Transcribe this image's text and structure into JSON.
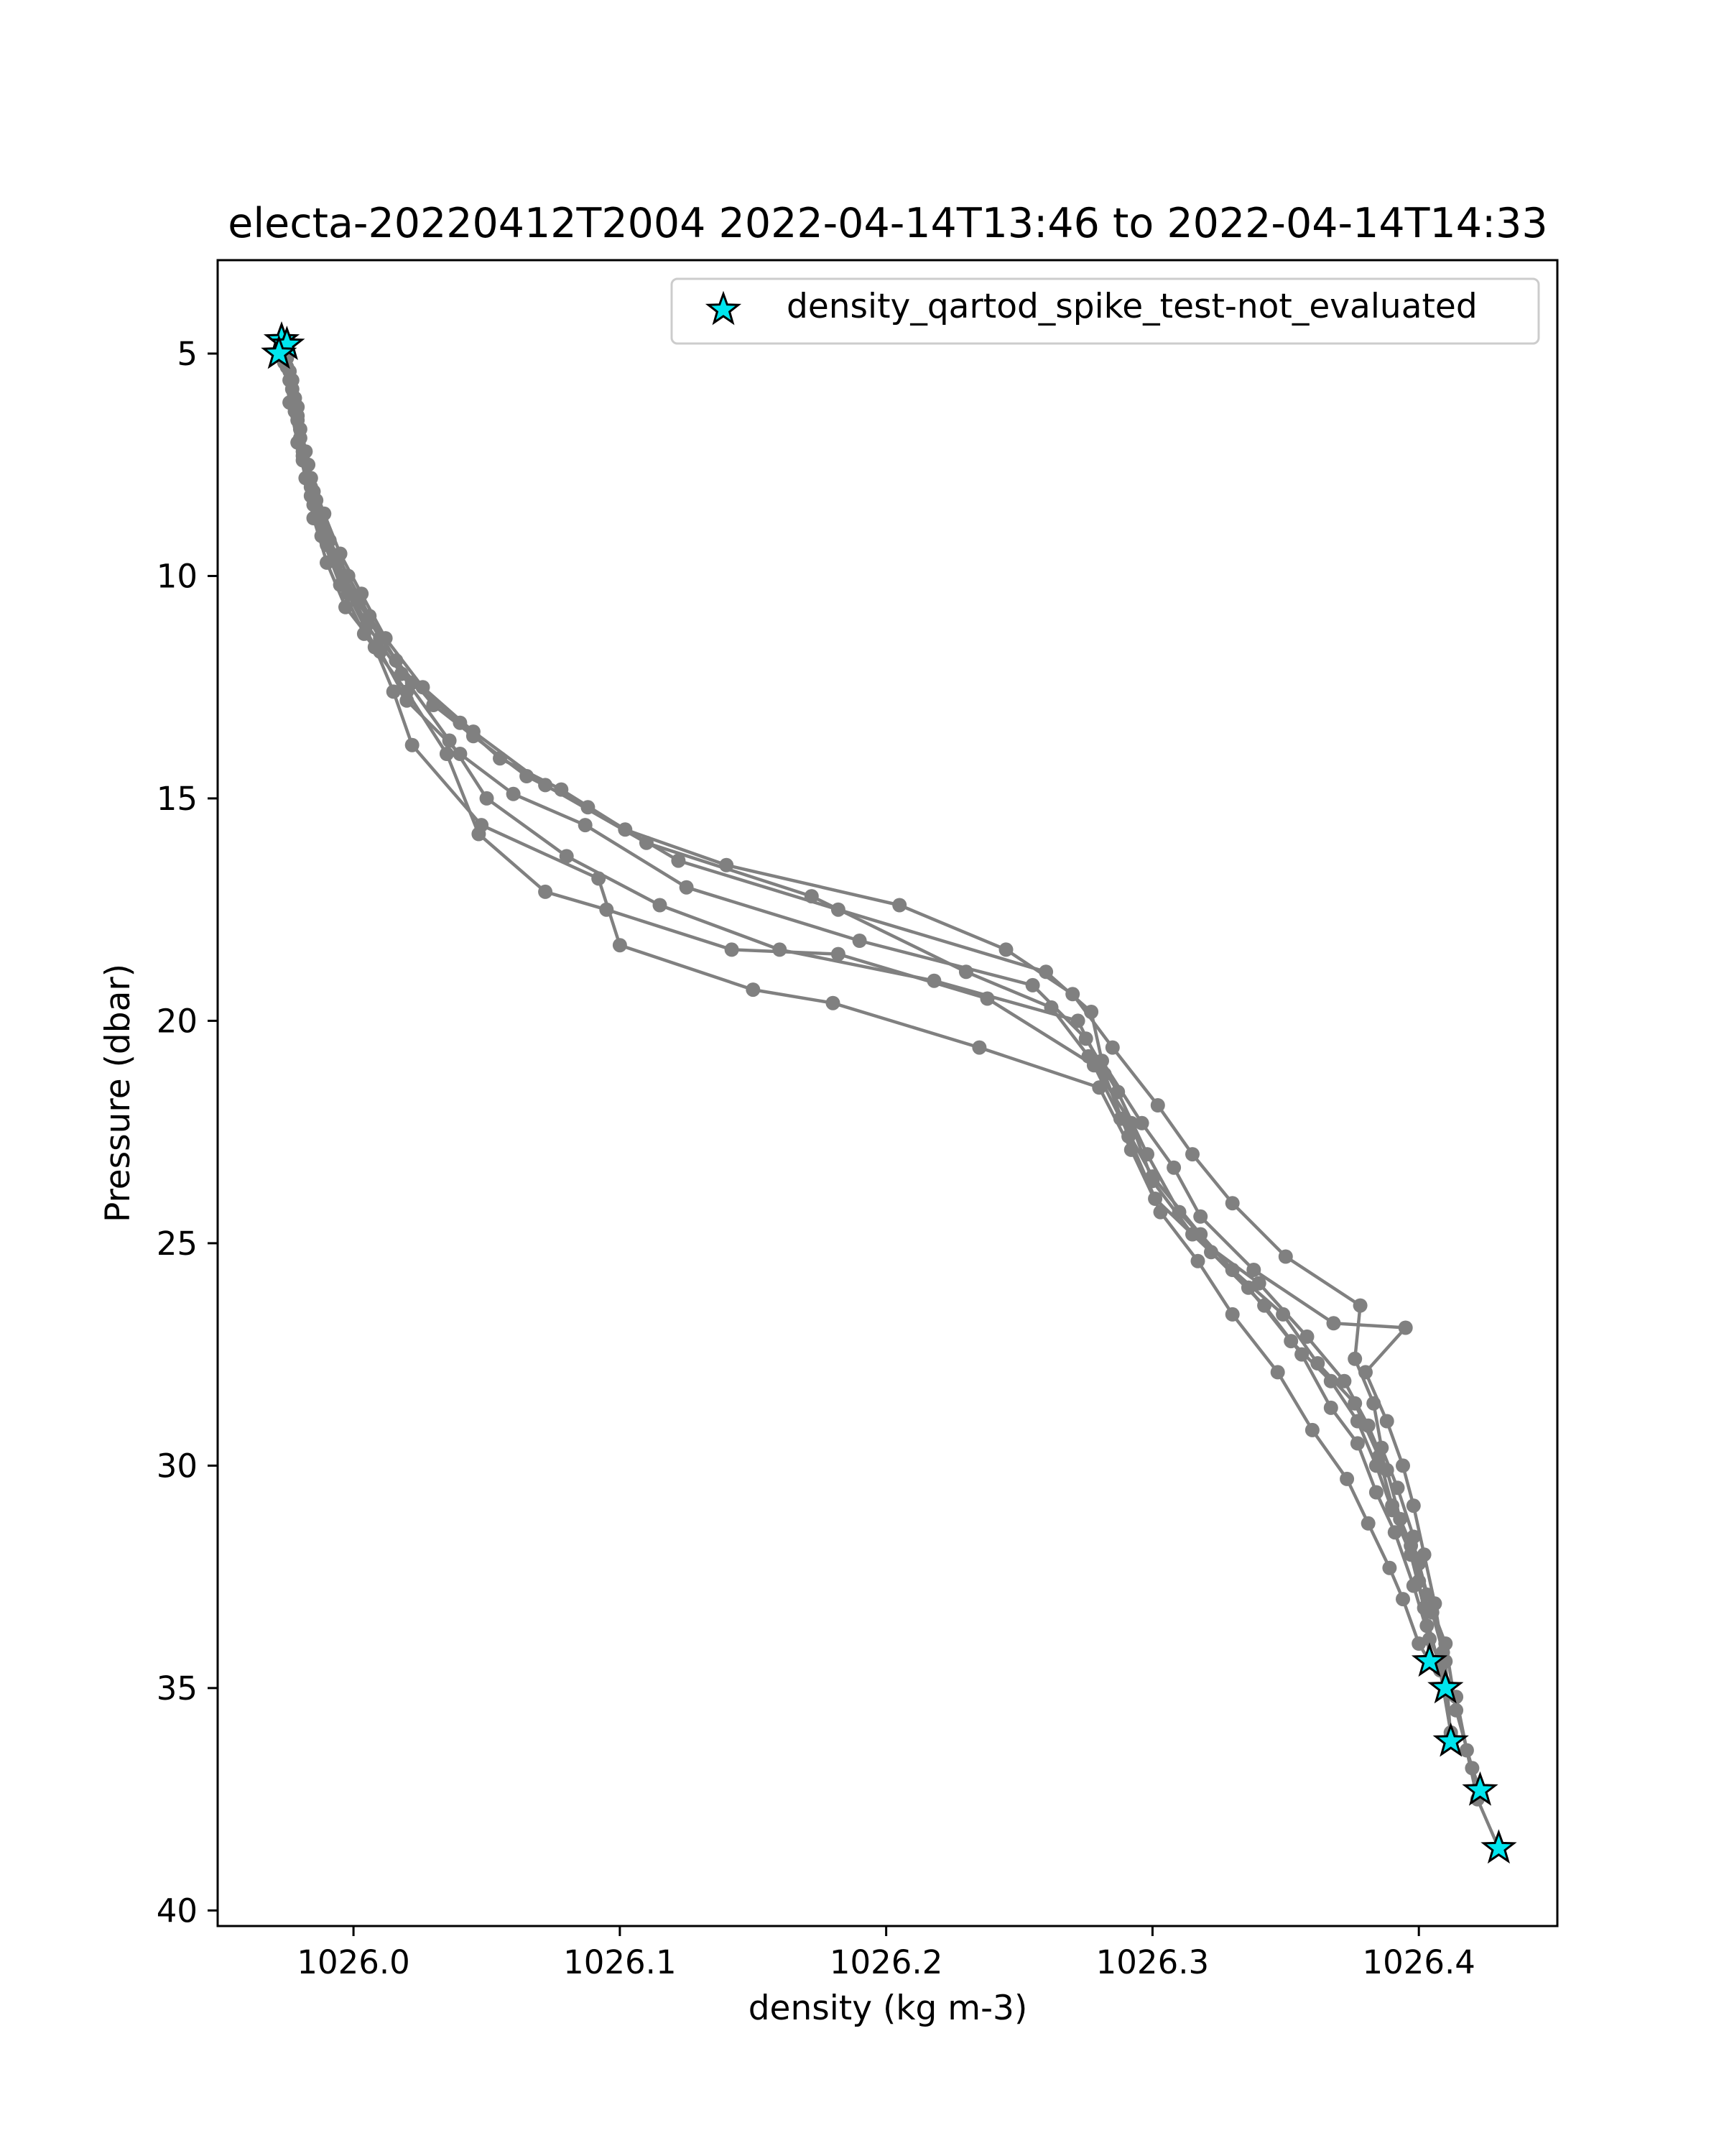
{
  "chart_data": {
    "type": "scatter",
    "title": "electa-20220412T2004 2022-04-14T13:46 to 2022-04-14T14:33",
    "xlabel": "density (kg m-3)",
    "ylabel": "Pressure (dbar)",
    "xlim": [
      1025.949,
      1026.452
    ],
    "ylim": [
      40.35,
      2.9
    ],
    "y_inverted": true,
    "x_ticks": [
      1026.0,
      1026.1,
      1026.2,
      1026.3,
      1026.4
    ],
    "x_tick_labels": [
      "1026.0",
      "1026.1",
      "1026.2",
      "1026.3",
      "1026.4"
    ],
    "y_ticks": [
      5,
      10,
      15,
      20,
      25,
      30,
      35,
      40
    ],
    "y_tick_labels": [
      "5",
      "10",
      "15",
      "20",
      "25",
      "30",
      "35",
      "40"
    ],
    "grid": false,
    "legend": {
      "placement": "upper right",
      "entries": [
        "density_qartod_spike_test-not_evaluated"
      ]
    },
    "line_color": "#808080",
    "flag_color": "#00e5ee",
    "series": [
      {
        "values": [
          [
            1025.973,
            4.8
          ],
          [
            1025.976,
            5.6
          ],
          [
            1025.979,
            6.4
          ],
          [
            1025.981,
            7.2
          ],
          [
            1025.984,
            8.0
          ],
          [
            1025.988,
            8.8
          ],
          [
            1025.994,
            9.7
          ],
          [
            1026.002,
            10.6
          ],
          [
            1026.01,
            11.4
          ],
          [
            1026.022,
            12.4
          ],
          [
            1026.04,
            13.3
          ],
          [
            1026.055,
            14.1
          ],
          [
            1026.078,
            14.8
          ],
          [
            1026.102,
            15.7
          ],
          [
            1026.14,
            16.5
          ],
          [
            1026.205,
            17.4
          ],
          [
            1026.245,
            18.4
          ],
          [
            1026.27,
            19.4
          ],
          [
            1026.285,
            20.6
          ],
          [
            1026.302,
            21.9
          ],
          [
            1026.315,
            23.0
          ],
          [
            1026.33,
            24.1
          ],
          [
            1026.35,
            25.3
          ],
          [
            1026.378,
            26.4
          ],
          [
            1026.376,
            27.6
          ],
          [
            1026.383,
            28.6
          ],
          [
            1026.386,
            29.6
          ],
          [
            1026.392,
            30.5
          ],
          [
            1026.398,
            31.6
          ],
          [
            1026.4,
            32.6
          ],
          [
            1026.403,
            33.6
          ],
          [
            1026.404,
            34.4
          ]
        ]
      },
      {
        "values": [
          [
            1025.974,
            5.0
          ],
          [
            1025.977,
            5.8
          ],
          [
            1025.98,
            6.7
          ],
          [
            1025.983,
            7.5
          ],
          [
            1025.986,
            8.3
          ],
          [
            1025.991,
            9.2
          ],
          [
            1025.998,
            10.0
          ],
          [
            1026.006,
            10.9
          ],
          [
            1026.016,
            11.9
          ],
          [
            1026.03,
            12.9
          ],
          [
            1026.045,
            13.6
          ],
          [
            1026.065,
            14.5
          ],
          [
            1026.088,
            15.2
          ],
          [
            1026.122,
            16.4
          ],
          [
            1026.182,
            17.5
          ],
          [
            1026.26,
            18.9
          ],
          [
            1026.277,
            19.8
          ],
          [
            1026.281,
            20.9
          ],
          [
            1026.296,
            22.3
          ],
          [
            1026.308,
            23.3
          ],
          [
            1026.318,
            24.4
          ],
          [
            1026.338,
            25.6
          ],
          [
            1026.368,
            26.8
          ],
          [
            1026.395,
            26.9
          ],
          [
            1026.38,
            27.9
          ],
          [
            1026.388,
            29.0
          ],
          [
            1026.394,
            30.0
          ],
          [
            1026.398,
            30.9
          ],
          [
            1026.402,
            32.0
          ],
          [
            1026.406,
            33.1
          ],
          [
            1026.409,
            34.2
          ],
          [
            1026.41,
            35.0
          ]
        ]
      },
      {
        "values": [
          [
            1025.975,
            5.1
          ],
          [
            1025.978,
            6.0
          ],
          [
            1025.98,
            6.9
          ],
          [
            1025.984,
            7.8
          ],
          [
            1025.989,
            8.6
          ],
          [
            1025.995,
            9.5
          ],
          [
            1026.003,
            10.4
          ],
          [
            1026.012,
            11.4
          ],
          [
            1026.026,
            12.5
          ],
          [
            1026.045,
            13.5
          ],
          [
            1026.072,
            14.7
          ],
          [
            1026.11,
            16.0
          ],
          [
            1026.172,
            17.2
          ],
          [
            1026.23,
            18.9
          ],
          [
            1026.262,
            19.7
          ],
          [
            1026.276,
            20.8
          ],
          [
            1026.292,
            22.3
          ],
          [
            1026.3,
            23.6
          ],
          [
            1026.315,
            24.8
          ],
          [
            1026.34,
            25.9
          ],
          [
            1026.358,
            27.1
          ],
          [
            1026.372,
            28.1
          ],
          [
            1026.381,
            29.1
          ],
          [
            1026.388,
            30.1
          ],
          [
            1026.393,
            31.2
          ],
          [
            1026.4,
            32.2
          ],
          [
            1026.405,
            33.3
          ],
          [
            1026.41,
            34.4
          ],
          [
            1026.412,
            36.2
          ]
        ]
      },
      {
        "values": [
          [
            1025.974,
            5.2
          ],
          [
            1025.976,
            6.1
          ],
          [
            1025.979,
            7.0
          ],
          [
            1025.982,
            7.8
          ],
          [
            1025.985,
            8.7
          ],
          [
            1025.99,
            9.7
          ],
          [
            1025.997,
            10.7
          ],
          [
            1026.01,
            11.7
          ],
          [
            1026.02,
            12.8
          ],
          [
            1026.04,
            14.0
          ],
          [
            1026.06,
            14.9
          ],
          [
            1026.087,
            15.6
          ],
          [
            1026.125,
            17.0
          ],
          [
            1026.19,
            18.2
          ],
          [
            1026.255,
            19.2
          ],
          [
            1026.275,
            20.4
          ],
          [
            1026.287,
            21.6
          ],
          [
            1026.298,
            23.0
          ],
          [
            1026.31,
            24.3
          ],
          [
            1026.33,
            25.6
          ],
          [
            1026.349,
            26.6
          ],
          [
            1026.362,
            27.7
          ],
          [
            1026.376,
            28.6
          ],
          [
            1026.385,
            29.8
          ],
          [
            1026.39,
            30.9
          ],
          [
            1026.397,
            31.8
          ],
          [
            1026.403,
            32.9
          ],
          [
            1026.41,
            34.0
          ],
          [
            1026.414,
            35.5
          ],
          [
            1026.42,
            36.8
          ],
          [
            1026.423,
            37.3
          ]
        ]
      },
      {
        "values": [
          [
            1025.975,
            5.3
          ],
          [
            1025.979,
            6.2
          ],
          [
            1025.982,
            7.2
          ],
          [
            1025.985,
            8.1
          ],
          [
            1025.989,
            9.0
          ],
          [
            1025.996,
            10.0
          ],
          [
            1026.005,
            11.1
          ],
          [
            1026.018,
            12.2
          ],
          [
            1026.036,
            13.7
          ],
          [
            1026.05,
            15.0
          ],
          [
            1026.08,
            16.3
          ],
          [
            1026.115,
            17.4
          ],
          [
            1026.16,
            18.4
          ],
          [
            1026.218,
            19.1
          ],
          [
            1026.272,
            20.0
          ],
          [
            1026.282,
            21.2
          ],
          [
            1026.291,
            22.6
          ],
          [
            1026.301,
            24.0
          ],
          [
            1026.322,
            25.2
          ],
          [
            1026.342,
            26.4
          ],
          [
            1026.356,
            27.5
          ],
          [
            1026.367,
            28.7
          ],
          [
            1026.377,
            29.5
          ],
          [
            1026.384,
            30.6
          ],
          [
            1026.391,
            31.5
          ],
          [
            1026.398,
            32.7
          ],
          [
            1026.404,
            33.9
          ],
          [
            1026.414,
            35.2
          ],
          [
            1026.418,
            36.4
          ],
          [
            1026.422,
            37.5
          ],
          [
            1026.43,
            38.6
          ]
        ]
      },
      {
        "values": [
          [
            1025.976,
            5.4
          ],
          [
            1025.978,
            6.3
          ],
          [
            1025.981,
            7.3
          ],
          [
            1025.984,
            8.2
          ],
          [
            1025.988,
            9.1
          ],
          [
            1025.995,
            10.2
          ],
          [
            1026.004,
            11.3
          ],
          [
            1026.02,
            12.6
          ],
          [
            1026.035,
            14.0
          ],
          [
            1026.047,
            15.8
          ],
          [
            1026.072,
            17.1
          ],
          [
            1026.095,
            17.5
          ],
          [
            1026.142,
            18.4
          ],
          [
            1026.182,
            18.5
          ],
          [
            1026.238,
            19.5
          ],
          [
            1026.278,
            21.0
          ],
          [
            1026.288,
            22.2
          ],
          [
            1026.3,
            23.5
          ],
          [
            1026.318,
            24.8
          ],
          [
            1026.336,
            26.0
          ],
          [
            1026.352,
            27.2
          ],
          [
            1026.367,
            28.1
          ],
          [
            1026.377,
            29.0
          ],
          [
            1026.384,
            30.0
          ],
          [
            1026.39,
            31.0
          ],
          [
            1026.397,
            32.0
          ],
          [
            1026.402,
            33.2
          ],
          [
            1026.408,
            34.6
          ],
          [
            1026.412,
            36.0
          ]
        ]
      },
      {
        "values": [
          [
            1025.977,
            5.6
          ],
          [
            1025.979,
            6.5
          ],
          [
            1025.981,
            7.4
          ],
          [
            1025.985,
            8.4
          ],
          [
            1025.99,
            9.3
          ],
          [
            1025.998,
            10.4
          ],
          [
            1026.008,
            11.6
          ],
          [
            1026.015,
            12.6
          ],
          [
            1026.022,
            13.8
          ],
          [
            1026.048,
            15.6
          ],
          [
            1026.092,
            16.8
          ],
          [
            1026.1,
            18.3
          ],
          [
            1026.15,
            19.3
          ],
          [
            1026.18,
            19.6
          ],
          [
            1026.235,
            20.6
          ],
          [
            1026.28,
            21.5
          ],
          [
            1026.292,
            22.9
          ],
          [
            1026.303,
            24.3
          ],
          [
            1026.317,
            25.4
          ],
          [
            1026.33,
            26.6
          ],
          [
            1026.347,
            27.9
          ],
          [
            1026.36,
            29.2
          ],
          [
            1026.373,
            30.3
          ],
          [
            1026.381,
            31.3
          ],
          [
            1026.389,
            32.3
          ],
          [
            1026.394,
            33.0
          ],
          [
            1026.4,
            34.0
          ],
          [
            1026.404,
            34.4
          ]
        ]
      }
    ],
    "flagged_points": [
      [
        1025.973,
        4.7
      ],
      [
        1025.975,
        4.8
      ],
      [
        1025.972,
        5.0
      ],
      [
        1026.404,
        34.4
      ],
      [
        1026.41,
        35.0
      ],
      [
        1026.412,
        36.2
      ],
      [
        1026.423,
        37.3
      ],
      [
        1026.43,
        38.6
      ]
    ]
  }
}
